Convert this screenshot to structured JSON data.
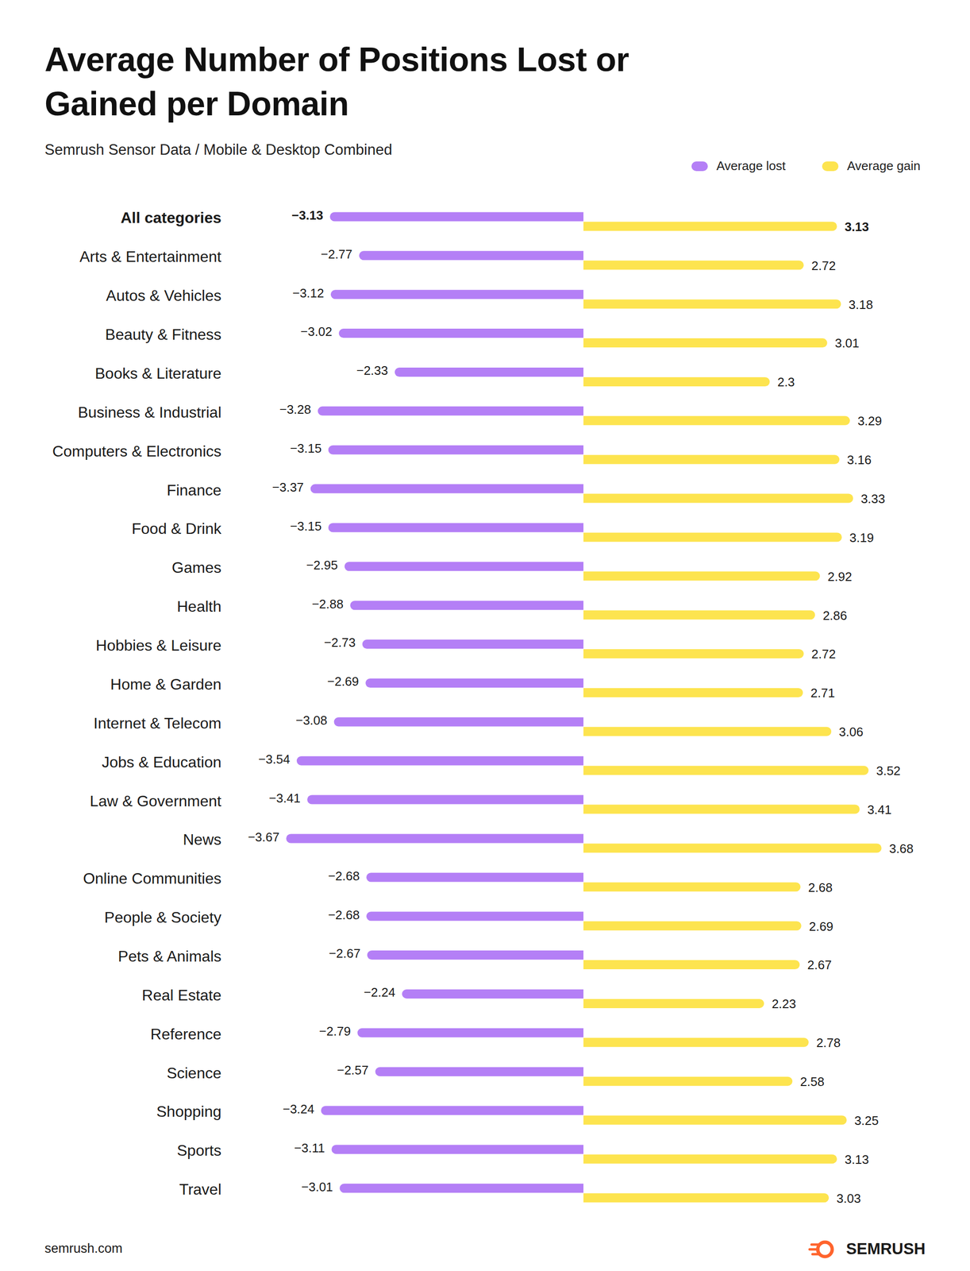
{
  "chart_data": {
    "type": "bar",
    "orientation": "horizontal",
    "title": "Average Number of Positions Lost or Gained per Domain",
    "subtitle": "Semrush Sensor Data / Mobile & Desktop Combined",
    "source": "semrush.com",
    "brand": "SEMRUSH",
    "categories": [
      "All categories",
      "Arts & Entertainment",
      "Autos & Vehicles",
      "Beauty & Fitness",
      "Books & Literature",
      "Business & Industrial",
      "Computers & Electronics",
      "Finance",
      "Food & Drink",
      "Games",
      "Health",
      "Hobbies & Leisure",
      "Home & Garden",
      "Internet & Telecom",
      "Jobs & Education",
      "Law & Government",
      "News",
      "Online Communities",
      "People & Society",
      "Pets & Animals",
      "Real Estate",
      "Reference",
      "Science",
      "Shopping",
      "Sports",
      "Travel"
    ],
    "series": [
      {
        "name": "Average lost",
        "color": "#b47ff6",
        "values": [
          -3.13,
          -2.77,
          -3.12,
          -3.02,
          -2.33,
          -3.28,
          -3.15,
          -3.37,
          -3.15,
          -2.95,
          -2.88,
          -2.73,
          -2.69,
          -3.08,
          -3.54,
          -3.41,
          -3.67,
          -2.68,
          -2.68,
          -2.67,
          -2.24,
          -2.79,
          -2.57,
          -3.24,
          -3.11,
          -3.01
        ],
        "value_labels": [
          "−3.13",
          "−2.77",
          "−3.12",
          "−3.02",
          "−2.33",
          "−3.28",
          "−3.15",
          "−3.37",
          "−3.15",
          "−2.95",
          "−2.88",
          "−2.73",
          "−2.69",
          "−3.08",
          "−3.54",
          "−3.41",
          "−3.67",
          "−2.68",
          "−2.68",
          "−2.67",
          "−2.24",
          "−2.79",
          "−2.57",
          "−3.24",
          "−3.11",
          "−3.01"
        ]
      },
      {
        "name": "Average gain",
        "color": "#fde44f",
        "values": [
          3.13,
          2.72,
          3.18,
          3.01,
          2.3,
          3.29,
          3.16,
          3.33,
          3.19,
          2.92,
          2.86,
          2.72,
          2.71,
          3.06,
          3.52,
          3.41,
          3.68,
          2.68,
          2.69,
          2.67,
          2.23,
          2.78,
          2.58,
          3.25,
          3.13,
          3.03
        ]
      }
    ],
    "xlim": [
      -4.5,
      4.5
    ],
    "data_labels": true,
    "tick_labels": "y",
    "legend": "top-right",
    "grid": false
  }
}
